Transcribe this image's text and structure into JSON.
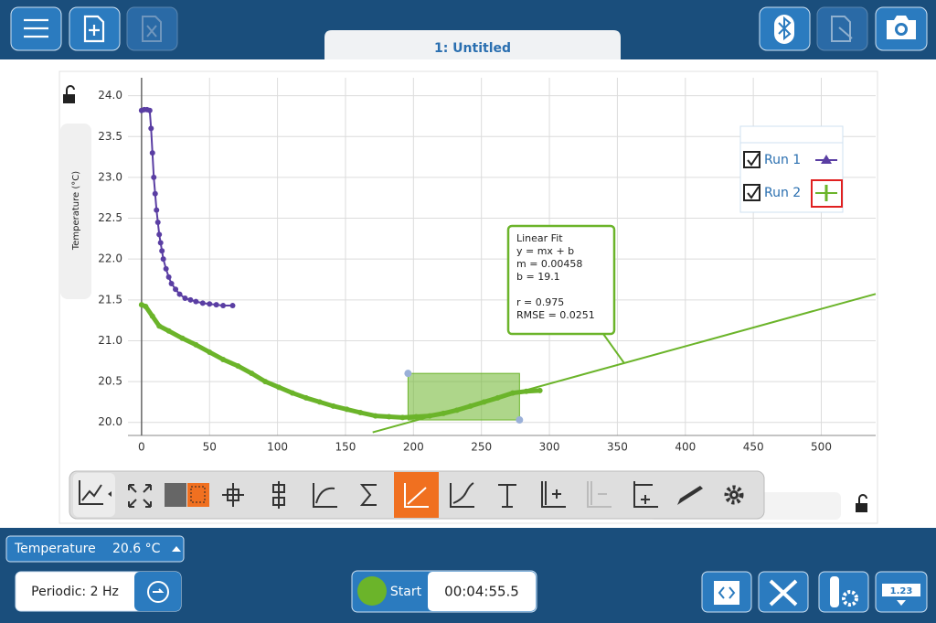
{
  "tab_title": "1: Untitled",
  "chart_data": {
    "type": "scatter",
    "y_label": "Temperature (°C)",
    "xlim": [
      -10,
      540
    ],
    "xticks": [
      0,
      50,
      100,
      150,
      200,
      250,
      300,
      350,
      400,
      450,
      500
    ],
    "ylim": [
      19.84,
      24.22
    ],
    "yticks": [
      {
        "value": 20,
        "label": "20.0"
      },
      20.5,
      {
        "value": 21,
        "label": "21.0"
      },
      21.5,
      {
        "value": 22,
        "label": "22.0"
      },
      22.5,
      {
        "value": 23,
        "label": "23.0"
      },
      23.5,
      {
        "value": 24,
        "label": "24.0"
      }
    ],
    "grid": true,
    "legend": "upper right",
    "series": [
      {
        "name": "Run 1",
        "color": "#5a3ea3",
        "x": [
          0,
          2,
          4,
          6,
          7,
          8,
          9,
          10,
          11,
          12,
          13,
          14,
          15,
          16,
          18,
          20,
          22,
          25,
          28,
          32,
          36,
          40,
          45,
          50,
          55,
          60,
          67
        ],
        "values": [
          23.82,
          23.83,
          23.83,
          23.82,
          23.6,
          23.3,
          23.0,
          22.8,
          22.6,
          22.45,
          22.3,
          22.2,
          22.1,
          22.0,
          21.88,
          21.78,
          21.7,
          21.63,
          21.57,
          21.52,
          21.5,
          21.48,
          21.46,
          21.45,
          21.44,
          21.43,
          21.43
        ]
      },
      {
        "name": "Run 2",
        "color": "#6bb42a",
        "x": [
          0,
          3,
          8,
          13,
          20,
          30,
          40,
          50,
          60,
          71,
          81,
          91,
          101,
          111,
          121,
          131,
          141,
          151,
          161,
          172,
          182,
          192,
          202,
          212,
          222,
          232,
          242,
          252,
          262,
          273,
          283,
          293
        ],
        "values": [
          21.44,
          21.42,
          21.3,
          21.18,
          21.12,
          21.03,
          20.95,
          20.86,
          20.77,
          20.69,
          20.6,
          20.5,
          20.43,
          20.36,
          20.3,
          20.25,
          20.2,
          20.16,
          20.12,
          20.08,
          20.07,
          20.06,
          20.07,
          20.08,
          20.11,
          20.15,
          20.2,
          20.25,
          20.3,
          20.36,
          20.38,
          20.39
        ]
      }
    ],
    "fit": {
      "text": [
        "Linear Fit",
        "y = mx + b",
        "m = 0.00458",
        "b = 19.1",
        "r = 0.975",
        "RMSE = 0.0251"
      ],
      "m": 0.00458,
      "b": 19.1,
      "x": [
        170,
        540
      ],
      "color": "#6bb42a"
    },
    "selection": {
      "x": [
        196,
        278
      ],
      "y": [
        20.03,
        20.6
      ]
    }
  },
  "meter": {
    "sensor": "Temperature",
    "reading": "20.6 °C"
  },
  "collection": {
    "mode": "Periodic: 2 Hz",
    "start": "Start",
    "timer": "00:04:55.5"
  },
  "meter_icon": "1.23"
}
